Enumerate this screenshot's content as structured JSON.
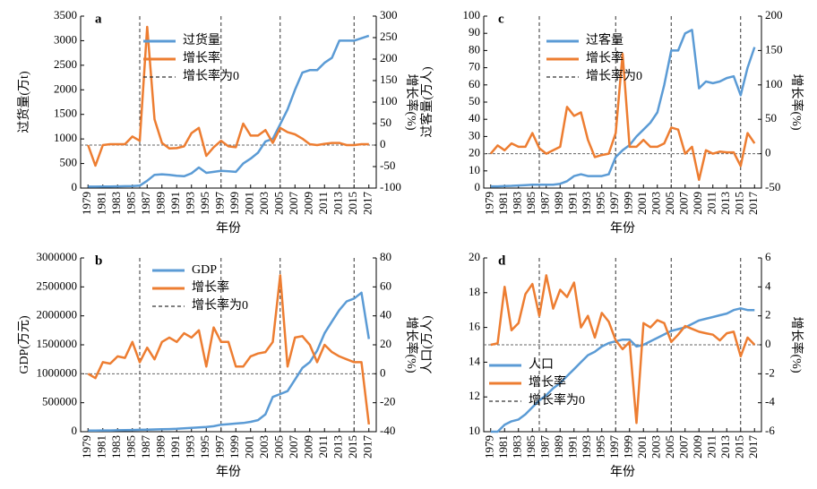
{
  "chart_data": [
    {
      "type": "line",
      "label": "a",
      "xlabel": "年份",
      "ylabel": "过货量(万t)",
      "y2label": "增长率(%)",
      "x": [
        1979,
        1980,
        1981,
        1982,
        1983,
        1984,
        1985,
        1986,
        1987,
        1988,
        1989,
        1990,
        1991,
        1992,
        1993,
        1994,
        1995,
        1996,
        1997,
        1998,
        1999,
        2000,
        2001,
        2002,
        2003,
        2004,
        2005,
        2006,
        2007,
        2008,
        2009,
        2010,
        2011,
        2012,
        2013,
        2014,
        2015,
        2016,
        2017
      ],
      "xlim": [
        1978,
        2018
      ],
      "xticks": [
        1979,
        1981,
        1983,
        1985,
        1987,
        1989,
        1991,
        1993,
        1995,
        1997,
        1999,
        2001,
        2003,
        2005,
        2007,
        2009,
        2011,
        2013,
        2015,
        2017
      ],
      "ylim": [
        0,
        3500
      ],
      "yticks": [
        0,
        500,
        1000,
        1500,
        2000,
        2500,
        3000,
        3500
      ],
      "y2lim": [
        -100,
        300
      ],
      "y2ticks": [
        -100,
        -50,
        0,
        50,
        100,
        150,
        200,
        250,
        300
      ],
      "legend": "upper left",
      "series": [
        {
          "name": "过货量",
          "color": "#5b9bd5",
          "values": [
            30,
            30,
            32,
            33,
            35,
            38,
            40,
            50,
            150,
            270,
            280,
            270,
            250,
            240,
            300,
            420,
            310,
            330,
            350,
            340,
            330,
            500,
            600,
            720,
            950,
            1000,
            1300,
            1600,
            2000,
            2350,
            2400,
            2400,
            2550,
            2650,
            3000,
            3000,
            3000,
            3050,
            3100
          ]
        },
        {
          "name": "增长率",
          "color": "#ed7d31",
          "axis": "y2",
          "values": [
            0,
            -48,
            0,
            2,
            2,
            2,
            20,
            10,
            275,
            60,
            5,
            -8,
            -7,
            -3,
            28,
            40,
            -25,
            -5,
            10,
            -3,
            -5,
            50,
            22,
            22,
            35,
            5,
            40,
            30,
            25,
            15,
            2,
            0,
            3,
            5,
            5,
            0,
            0,
            2,
            2
          ]
        }
      ],
      "reference_line": {
        "name": "增长率为0",
        "value": 0,
        "axis": "y2"
      },
      "vlines": [
        1986,
        1997,
        2005,
        2015
      ]
    },
    {
      "type": "line",
      "label": "c",
      "xlabel": "年份",
      "ylabel": "过客量(万人)",
      "y2label": "增长率(%)",
      "x": [
        1979,
        1980,
        1981,
        1982,
        1983,
        1984,
        1985,
        1986,
        1987,
        1988,
        1989,
        1990,
        1991,
        1992,
        1993,
        1994,
        1995,
        1996,
        1997,
        1998,
        1999,
        2000,
        2001,
        2002,
        2003,
        2004,
        2005,
        2006,
        2007,
        2008,
        2009,
        2010,
        2011,
        2012,
        2013,
        2014,
        2015,
        2016,
        2017
      ],
      "xlim": [
        1978,
        2018
      ],
      "xticks": [
        1979,
        1981,
        1983,
        1985,
        1987,
        1989,
        1991,
        1993,
        1995,
        1997,
        1999,
        2001,
        2003,
        2005,
        2007,
        2009,
        2011,
        2013,
        2015,
        2017
      ],
      "ylim": [
        0,
        100
      ],
      "yticks": [
        0,
        10,
        20,
        30,
        40,
        50,
        60,
        70,
        80,
        90,
        100
      ],
      "y2lim": [
        -50,
        200
      ],
      "y2ticks": [
        -50,
        0,
        50,
        100,
        150,
        200
      ],
      "legend": "upper left",
      "series": [
        {
          "name": "过客量",
          "color": "#5b9bd5",
          "values": [
            1,
            1,
            1.2,
            1.3,
            1.5,
            1.7,
            2,
            2,
            2,
            2,
            2.5,
            4,
            7,
            8,
            7,
            7,
            7,
            8,
            18,
            22,
            25,
            30,
            34,
            38,
            44,
            60,
            80,
            80,
            90,
            92,
            58,
            62,
            61,
            62,
            64,
            65,
            54,
            70,
            82
          ]
        },
        {
          "name": "增长率",
          "color": "#ed7d31",
          "axis": "y2",
          "values": [
            0,
            12,
            5,
            15,
            10,
            10,
            30,
            8,
            0,
            5,
            10,
            68,
            55,
            60,
            20,
            -5,
            -2,
            0,
            30,
            145,
            10,
            10,
            20,
            10,
            10,
            15,
            38,
            35,
            0,
            10,
            -38,
            5,
            0,
            3,
            2,
            2,
            -18,
            30,
            15
          ]
        }
      ],
      "reference_line": {
        "name": "增长率为0",
        "value": 0,
        "axis": "y2"
      },
      "vlines": [
        1986,
        1997,
        2005,
        2015
      ]
    },
    {
      "type": "line",
      "label": "b",
      "xlabel": "年份",
      "ylabel": "GDP(万元)",
      "y2label": "增长率(%)",
      "x": [
        1979,
        1980,
        1981,
        1982,
        1983,
        1984,
        1985,
        1986,
        1987,
        1988,
        1989,
        1990,
        1991,
        1992,
        1993,
        1994,
        1995,
        1996,
        1997,
        1998,
        1999,
        2000,
        2001,
        2002,
        2003,
        2004,
        2005,
        2006,
        2007,
        2008,
        2009,
        2010,
        2011,
        2012,
        2013,
        2014,
        2015,
        2016,
        2017
      ],
      "xlim": [
        1978,
        2018
      ],
      "xticks": [
        1979,
        1981,
        1983,
        1985,
        1987,
        1989,
        1991,
        1993,
        1995,
        1997,
        1999,
        2001,
        2003,
        2005,
        2007,
        2009,
        2011,
        2013,
        2015,
        2017
      ],
      "ylim": [
        0,
        3000000
      ],
      "yticks": [
        0,
        500000,
        1000000,
        1500000,
        2000000,
        2500000,
        3000000
      ],
      "y2lim": [
        -40,
        80
      ],
      "y2ticks": [
        -40,
        -20,
        0,
        20,
        40,
        60,
        80
      ],
      "legend": "upper center",
      "series": [
        {
          "name": "GDP",
          "color": "#5b9bd5",
          "values": [
            20000,
            20000,
            21000,
            22000,
            24000,
            26000,
            30000,
            32000,
            36000,
            38000,
            42000,
            45000,
            50000,
            58000,
            65000,
            72000,
            80000,
            95000,
            120000,
            130000,
            140000,
            150000,
            170000,
            200000,
            300000,
            600000,
            650000,
            700000,
            900000,
            1100000,
            1200000,
            1400000,
            1700000,
            1900000,
            2100000,
            2250000,
            2300000,
            2400000,
            1600000
          ]
        },
        {
          "name": "增长率",
          "color": "#ed7d31",
          "axis": "y2",
          "values": [
            0,
            -3,
            8,
            7,
            12,
            11,
            22,
            8,
            18,
            10,
            22,
            25,
            22,
            28,
            25,
            30,
            5,
            32,
            22,
            22,
            5,
            5,
            12,
            14,
            15,
            22,
            68,
            5,
            25,
            26,
            20,
            8,
            20,
            15,
            12,
            10,
            8,
            8,
            -35
          ]
        }
      ],
      "reference_line": {
        "name": "增长率为0",
        "value": 0,
        "axis": "y2"
      },
      "vlines": [
        1986,
        1997,
        2005,
        2015
      ]
    },
    {
      "type": "line",
      "label": "d",
      "xlabel": "年份",
      "ylabel": "人口(万人)",
      "y2label": "增长率(%)",
      "x": [
        1979,
        1980,
        1981,
        1982,
        1983,
        1984,
        1985,
        1986,
        1987,
        1988,
        1989,
        1990,
        1991,
        1992,
        1993,
        1994,
        1995,
        1996,
        1997,
        1998,
        1999,
        2000,
        2001,
        2002,
        2003,
        2004,
        2005,
        2006,
        2007,
        2008,
        2009,
        2010,
        2011,
        2012,
        2013,
        2014,
        2015,
        2016,
        2017
      ],
      "xlim": [
        1978,
        2018
      ],
      "xticks": [
        1979,
        1981,
        1983,
        1985,
        1987,
        1989,
        1991,
        1993,
        1995,
        1997,
        1999,
        2001,
        2003,
        2005,
        2007,
        2009,
        2011,
        2013,
        2015,
        2017
      ],
      "ylim": [
        10,
        20
      ],
      "yticks": [
        10,
        12,
        14,
        16,
        18,
        20
      ],
      "y2lim": [
        -6,
        6
      ],
      "y2ticks": [
        -6,
        -4,
        -2,
        0,
        2,
        4,
        6
      ],
      "legend": "lower left",
      "series": [
        {
          "name": "人口",
          "color": "#5b9bd5",
          "values": [
            10,
            10,
            10.4,
            10.6,
            10.7,
            11,
            11.4,
            11.8,
            12.1,
            12.5,
            12.8,
            13.2,
            13.6,
            14,
            14.4,
            14.6,
            14.9,
            15.1,
            15.2,
            15.3,
            15.3,
            14.9,
            15,
            15.2,
            15.4,
            15.6,
            15.8,
            15.9,
            16,
            16.2,
            16.4,
            16.5,
            16.6,
            16.7,
            16.8,
            17,
            17.1,
            17,
            17
          ]
        },
        {
          "name": "增长率",
          "color": "#ed7d31",
          "axis": "y2",
          "values": [
            0,
            0.1,
            4,
            1,
            1.5,
            3.5,
            4.2,
            2,
            4.8,
            2.5,
            3.8,
            3.3,
            4.3,
            1.2,
            2,
            0.5,
            2.2,
            1.6,
            0.3,
            -0.3,
            0.2,
            -5.4,
            1.5,
            1.2,
            1.7,
            1.5,
            0.2,
            0.7,
            1.3,
            1.1,
            0.9,
            0.8,
            0.7,
            0.3,
            0.8,
            0.9,
            -0.8,
            0.5,
            0
          ]
        }
      ],
      "reference_line": {
        "name": "增长率为0",
        "value": 0,
        "axis": "y2"
      },
      "vlines": [
        1986,
        1997,
        2005,
        2015
      ]
    }
  ]
}
